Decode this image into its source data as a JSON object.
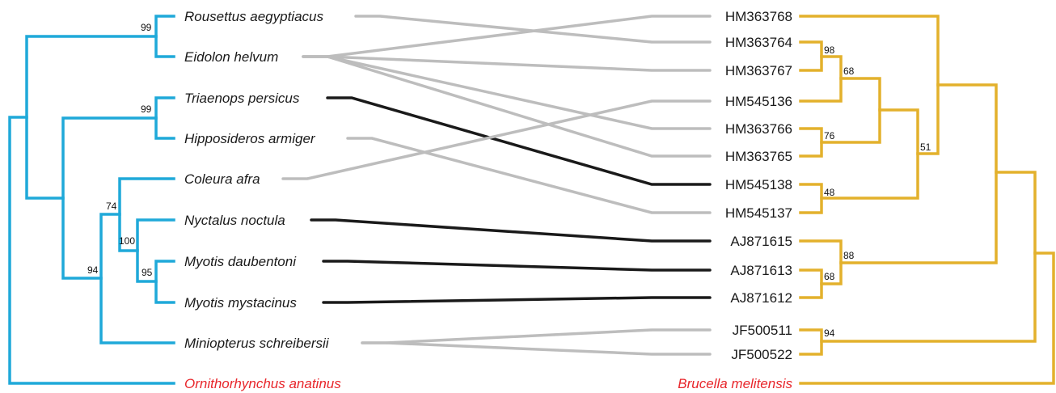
{
  "colors": {
    "host_tree": "#1fa9d9",
    "parasite_tree": "#e3b12c",
    "assoc_grey": "#bdbdbd",
    "assoc_black": "#1a1a1a",
    "outgroup_label": "#e8262b"
  },
  "host_taxa": [
    {
      "id": "rous",
      "label": "Rousettus aegyptiacus"
    },
    {
      "id": "eido",
      "label": "Eidolon helvum"
    },
    {
      "id": "tria",
      "label": "Triaenops persicus"
    },
    {
      "id": "hipp",
      "label": "Hipposideros armiger"
    },
    {
      "id": "cole",
      "label": "Coleura afra"
    },
    {
      "id": "nyct",
      "label": "Nyctalus noctula"
    },
    {
      "id": "mdau",
      "label": "Myotis daubentoni"
    },
    {
      "id": "mmys",
      "label": "Myotis mystacinus"
    },
    {
      "id": "mini",
      "label": "Miniopterus schreibersii"
    },
    {
      "id": "orni",
      "label": "Ornithorhynchus  anatinus",
      "outgroup": true
    }
  ],
  "parasite_taxa": [
    {
      "id": "hm68",
      "label": "HM363768"
    },
    {
      "id": "hm64",
      "label": "HM363764"
    },
    {
      "id": "hm67",
      "label": "HM363767"
    },
    {
      "id": "hm136",
      "label": "HM545136"
    },
    {
      "id": "hm66",
      "label": "HM363766"
    },
    {
      "id": "hm65",
      "label": "HM363765"
    },
    {
      "id": "hm138",
      "label": "HM545138"
    },
    {
      "id": "hm137",
      "label": "HM545137"
    },
    {
      "id": "aj15",
      "label": "AJ871615"
    },
    {
      "id": "aj13",
      "label": "AJ871613"
    },
    {
      "id": "aj12",
      "label": "AJ871612"
    },
    {
      "id": "jf11",
      "label": "JF500511"
    },
    {
      "id": "jf22",
      "label": "JF500522"
    },
    {
      "id": "bruc",
      "label": "Brucella  melitensis",
      "outgroup": true
    }
  ],
  "host_support": [
    "99",
    "99",
    "74",
    "100",
    "95",
    "94"
  ],
  "parasite_support": [
    "98",
    "68",
    "76",
    "48",
    "51",
    "88",
    "68",
    "94"
  ],
  "associations": [
    {
      "host": "rous",
      "parasite": "hm64",
      "style": "grey"
    },
    {
      "host": "eido",
      "parasite": "hm68",
      "style": "grey"
    },
    {
      "host": "eido",
      "parasite": "hm67",
      "style": "grey"
    },
    {
      "host": "eido",
      "parasite": "hm66",
      "style": "grey"
    },
    {
      "host": "eido",
      "parasite": "hm65",
      "style": "grey"
    },
    {
      "host": "tria",
      "parasite": "hm138",
      "style": "black"
    },
    {
      "host": "hipp",
      "parasite": "hm137",
      "style": "grey"
    },
    {
      "host": "cole",
      "parasite": "hm136",
      "style": "grey"
    },
    {
      "host": "nyct",
      "parasite": "aj15",
      "style": "black"
    },
    {
      "host": "mdau",
      "parasite": "aj13",
      "style": "black"
    },
    {
      "host": "mmys",
      "parasite": "aj12",
      "style": "black"
    },
    {
      "host": "mini",
      "parasite": "jf11",
      "style": "grey"
    },
    {
      "host": "mini",
      "parasite": "jf22",
      "style": "grey"
    }
  ]
}
